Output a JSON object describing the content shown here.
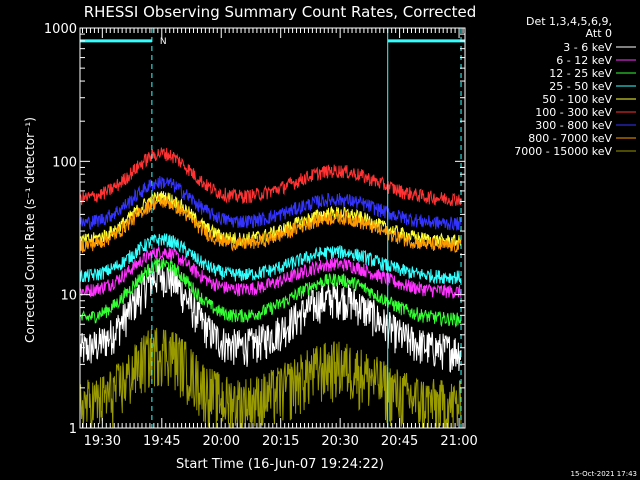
{
  "chart_data": {
    "type": "line",
    "title": "RHESSI Observing Summary Count Rates, Corrected",
    "xlabel": "Start Time (16-Jun-07 19:24:22)",
    "ylabel": "Corrected Count Rate (s⁻¹ detector⁻¹)",
    "yscale": "log",
    "ylim": [
      1,
      1000
    ],
    "xlim": [
      "19:24:22",
      "21:01:30"
    ],
    "x_ticks": [
      "19:30",
      "19:45",
      "20:00",
      "20:15",
      "20:30",
      "20:45",
      "21:00"
    ],
    "y_ticks": [
      "1",
      "10",
      "100",
      "1000"
    ],
    "grid": false,
    "legend_position": "right",
    "legend_header": [
      "Det 1,3,4,5,6,9,",
      "Att 0"
    ],
    "series": [
      {
        "name": "3 - 6 keV",
        "color": "#ffffff",
        "baseline": 3.8,
        "peaks": [
          {
            "time": "19:45",
            "value": 14
          },
          {
            "time": "20:29",
            "value": 9.5
          }
        ]
      },
      {
        "name": "6 - 12 keV",
        "color": "#ff33ff",
        "baseline": 10.5,
        "peaks": [
          {
            "time": "19:45",
            "value": 21
          },
          {
            "time": "20:29",
            "value": 17
          }
        ]
      },
      {
        "name": "12 - 25 keV",
        "color": "#33ff33",
        "baseline": 6.5,
        "peaks": [
          {
            "time": "19:45",
            "value": 17
          },
          {
            "time": "20:29",
            "value": 13
          }
        ]
      },
      {
        "name": "25 - 50 keV",
        "color": "#33ffff",
        "baseline": 13.5,
        "peaks": [
          {
            "time": "19:45",
            "value": 26
          },
          {
            "time": "20:29",
            "value": 21
          }
        ]
      },
      {
        "name": "50 - 100 keV",
        "color": "#ffff33",
        "baseline": 25,
        "peaks": [
          {
            "time": "19:45",
            "value": 54
          },
          {
            "time": "20:29",
            "value": 41
          }
        ]
      },
      {
        "name": "100 - 300 keV",
        "color": "#ff3333",
        "baseline": 52,
        "peaks": [
          {
            "time": "19:45",
            "value": 115
          },
          {
            "time": "20:29",
            "value": 85
          }
        ]
      },
      {
        "name": "300 - 800 keV",
        "color": "#3333ff",
        "baseline": 34,
        "peaks": [
          {
            "time": "19:45",
            "value": 70
          },
          {
            "time": "20:29",
            "value": 52
          }
        ]
      },
      {
        "name": "800 - 7000 keV",
        "color": "#ff9900",
        "baseline": 23,
        "peaks": [
          {
            "time": "19:45",
            "value": 50
          },
          {
            "time": "20:29",
            "value": 38
          }
        ]
      },
      {
        "name": "7000 - 15000 keV",
        "color": "#999900",
        "baseline": 1.5,
        "peaks": [
          {
            "time": "19:45",
            "value": 4
          },
          {
            "time": "20:29",
            "value": 3
          }
        ]
      }
    ],
    "annotations": [
      {
        "type": "vline",
        "time": "19:42:30",
        "style": "dashed"
      },
      {
        "type": "vline",
        "time": "20:42:00",
        "style": "solid"
      },
      {
        "type": "vline",
        "time": "21:00:30",
        "style": "dashed"
      },
      {
        "type": "night-bar",
        "start": "19:24:22",
        "end": "19:42:30",
        "value": 800,
        "label": "N"
      },
      {
        "type": "night-bar",
        "start": "20:42:00",
        "end": "21:01:30",
        "value": 800
      }
    ],
    "footer_timestamp": "15-Oct-2021 17:43"
  }
}
